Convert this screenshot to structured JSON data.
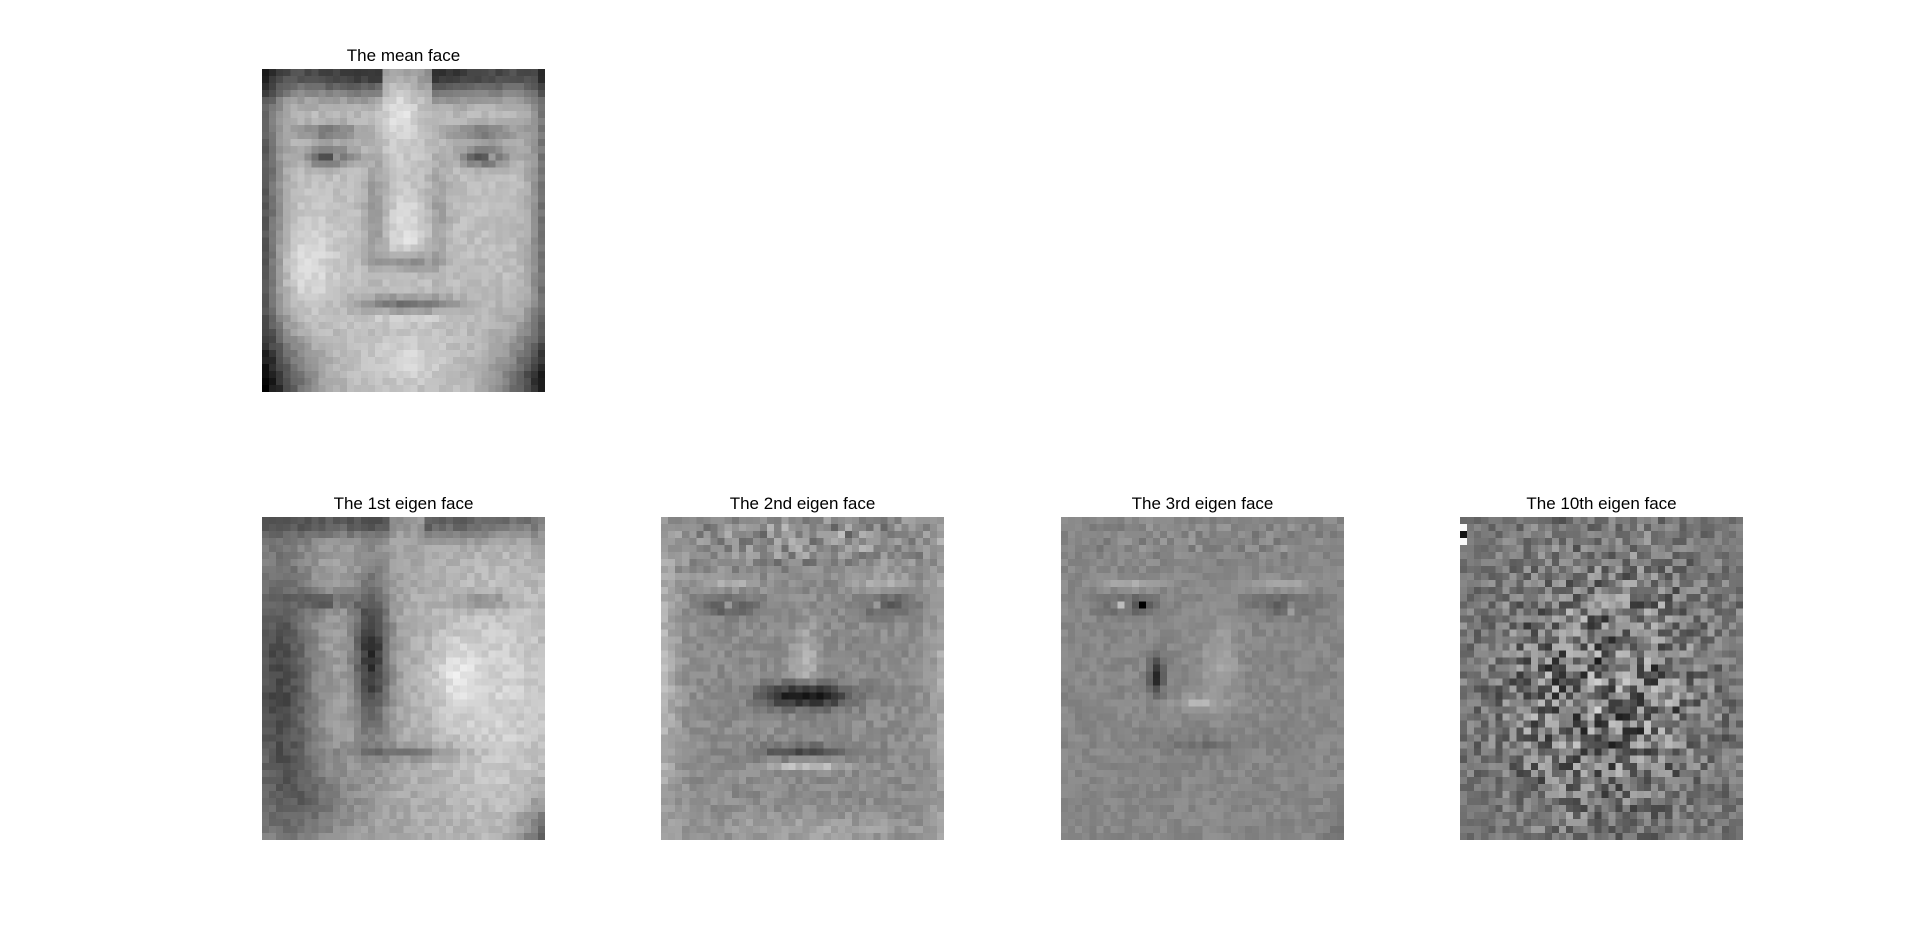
{
  "figure": {
    "panels": [
      {
        "id": "mean",
        "title": "The mean face",
        "kind": "mean"
      },
      {
        "id": "e1",
        "title": "The 1st eigen face",
        "kind": "eig1"
      },
      {
        "id": "e2",
        "title": "The 2nd eigen face",
        "kind": "eig2"
      },
      {
        "id": "e3",
        "title": "The 3rd eigen face",
        "kind": "eig3"
      },
      {
        "id": "e10",
        "title": "The 10th eigen face",
        "kind": "eig10"
      }
    ],
    "colormap": "gray"
  }
}
